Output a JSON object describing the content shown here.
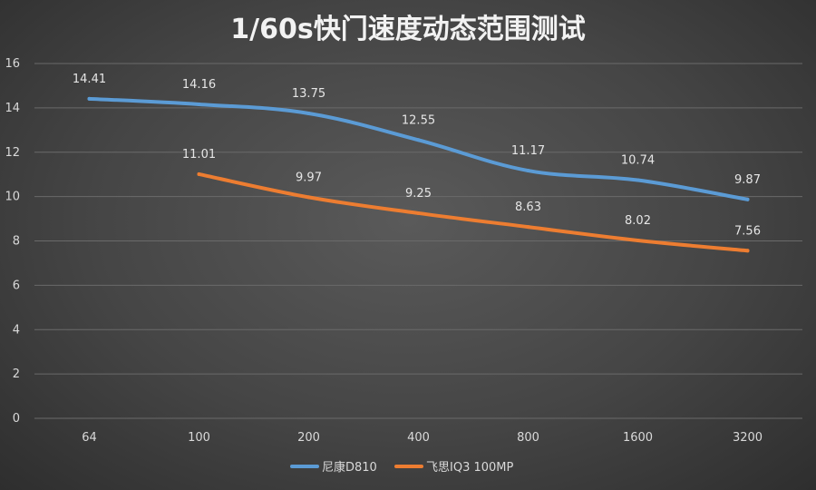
{
  "chart_data": {
    "type": "line",
    "title": "1/60s快门速度动态范围测试",
    "xlabel": "",
    "ylabel": "",
    "categories": [
      "64",
      "100",
      "200",
      "400",
      "800",
      "1600",
      "3200"
    ],
    "ylim": [
      0,
      16
    ],
    "yticks": [
      0,
      2,
      4,
      6,
      8,
      10,
      12,
      14,
      16
    ],
    "grid": true,
    "legend_position": "bottom",
    "series": [
      {
        "name": "尼康D810",
        "color": "#5b9bd5",
        "values": [
          14.41,
          14.16,
          13.75,
          12.55,
          11.17,
          10.74,
          9.87
        ],
        "labels": [
          "14.41",
          "14.16",
          "13.75",
          "12.55",
          "11.17",
          "10.74",
          "9.87"
        ]
      },
      {
        "name": "飞思IQ3 100MP",
        "color": "#ed7d31",
        "values": [
          null,
          11.01,
          9.97,
          9.25,
          8.63,
          8.02,
          7.56
        ],
        "labels": [
          "",
          "11.01",
          "9.97",
          "9.25",
          "8.63",
          "8.02",
          "7.56"
        ]
      }
    ]
  }
}
